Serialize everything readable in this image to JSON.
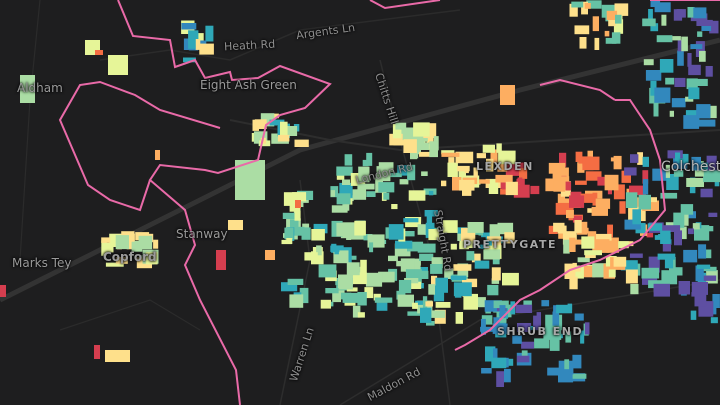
{
  "map": {
    "style": "dark basemap",
    "boundary_color": "#e96aa8",
    "choropleth_palette": [
      "#d53e4f",
      "#f46d43",
      "#fdae61",
      "#fee08b",
      "#e6f598",
      "#abdda4",
      "#66c2a5",
      "#2fa8b8",
      "#3288bd",
      "#5e4fa2"
    ],
    "places": {
      "aldham": "Aldham",
      "eight_ash_green": "Eight Ash Green",
      "stanway": "Stanway",
      "copford": "Copford",
      "marks_tey": "Marks Tey",
      "lexden": "LEXDEN",
      "prettygate": "PRETTYGATE",
      "shrub_end": "SHRUB END",
      "colchester": "Colchester"
    },
    "roads": {
      "heath_rd": "Heath Rd",
      "argents_ln": "Argents Ln",
      "chitts_hill": "Chitts Hill",
      "london_rd": "London Rd",
      "straight_rd": "Straight Rd",
      "warren_ln": "Warren Ln",
      "maldon_rd": "Maldon Rd"
    }
  }
}
